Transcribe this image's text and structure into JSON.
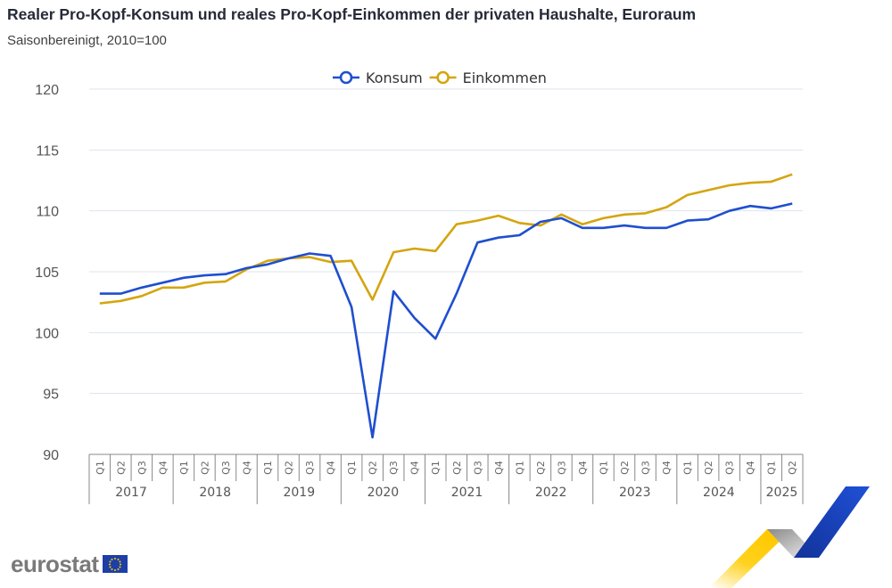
{
  "header": {
    "title": "Realer Pro-Kopf-Konsum und reales Pro-Kopf-Einkommen der privaten Haushalte, Euroraum",
    "subtitle": "Saisonbereinigt, 2010=100"
  },
  "legend": {
    "items": [
      {
        "label": "Konsum",
        "color": "#1f4fcf"
      },
      {
        "label": "Einkommen",
        "color": "#d4a50f"
      }
    ]
  },
  "axes": {
    "y_ticks": [
      "120",
      "115",
      "110",
      "105",
      "100",
      "95",
      "90"
    ],
    "quarter_labels": [
      "Q1",
      "Q2",
      "Q3",
      "Q4"
    ],
    "years": [
      "2017",
      "2018",
      "2019",
      "2020",
      "2021",
      "2022",
      "2023",
      "2024",
      "2025"
    ]
  },
  "footer": {
    "logo_text": "eurostat"
  },
  "chart_data": {
    "type": "line",
    "title": "Realer Pro-Kopf-Konsum und reales Pro-Kopf-Einkommen der privaten Haushalte, Euroraum",
    "subtitle": "Saisonbereinigt, 2010=100",
    "xlabel": "",
    "ylabel": "",
    "ylim": [
      90,
      120
    ],
    "yticks": [
      90,
      95,
      100,
      105,
      110,
      115,
      120
    ],
    "grid": true,
    "legend_position": "top-center",
    "x": [
      "2017Q1",
      "2017Q2",
      "2017Q3",
      "2017Q4",
      "2018Q1",
      "2018Q2",
      "2018Q3",
      "2018Q4",
      "2019Q1",
      "2019Q2",
      "2019Q3",
      "2019Q4",
      "2020Q1",
      "2020Q2",
      "2020Q3",
      "2020Q4",
      "2021Q1",
      "2021Q2",
      "2021Q3",
      "2021Q4",
      "2022Q1",
      "2022Q2",
      "2022Q3",
      "2022Q4",
      "2023Q1",
      "2023Q2",
      "2023Q3",
      "2023Q4",
      "2024Q1",
      "2024Q2",
      "2024Q3",
      "2024Q4",
      "2025Q1",
      "2025Q2"
    ],
    "series": [
      {
        "name": "Konsum",
        "color": "#1f4fcf",
        "values": [
          103.2,
          103.2,
          103.7,
          104.1,
          104.5,
          104.7,
          104.8,
          105.3,
          105.6,
          106.1,
          106.5,
          106.3,
          102.1,
          91.4,
          103.4,
          101.2,
          99.5,
          103.2,
          107.4,
          107.8,
          108.0,
          109.1,
          109.4,
          108.6,
          108.6,
          108.8,
          108.6,
          108.6,
          109.2,
          109.3,
          110.0,
          110.4,
          110.2,
          110.6
        ]
      },
      {
        "name": "Einkommen",
        "color": "#d4a50f",
        "values": [
          102.4,
          102.6,
          103.0,
          103.7,
          103.7,
          104.1,
          104.2,
          105.2,
          105.9,
          106.1,
          106.2,
          105.8,
          105.9,
          102.7,
          106.6,
          106.9,
          106.7,
          108.9,
          109.2,
          109.6,
          109.0,
          108.8,
          109.7,
          108.9,
          109.4,
          109.7,
          109.8,
          110.3,
          111.3,
          111.7,
          112.1,
          112.3,
          112.4,
          113.0
        ]
      }
    ]
  }
}
